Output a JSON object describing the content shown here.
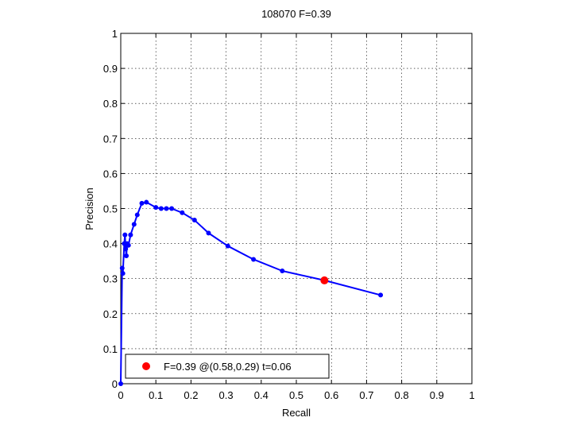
{
  "chart_data": {
    "type": "line",
    "title": "108070 F=0.39",
    "xlabel": "Recall",
    "ylabel": "Precision",
    "xlim": [
      0,
      1
    ],
    "ylim": [
      0,
      1
    ],
    "xticks": [
      0,
      0.1,
      0.2,
      0.3,
      0.4,
      0.5,
      0.6,
      0.7,
      0.8,
      0.9,
      1
    ],
    "yticks": [
      0,
      0.1,
      0.2,
      0.3,
      0.4,
      0.5,
      0.6,
      0.7,
      0.8,
      0.9,
      1
    ],
    "xtick_labels": [
      "0",
      "0.1",
      "0.2",
      "0.3",
      "0.4",
      "0.5",
      "0.6",
      "0.7",
      "0.8",
      "0.9",
      "1"
    ],
    "ytick_labels": [
      "0",
      "0.1",
      "0.2",
      "0.3",
      "0.4",
      "0.5",
      "0.6",
      "0.7",
      "0.8",
      "0.9",
      "1"
    ],
    "grid": true,
    "legend_position": "bottom-left",
    "series": [
      {
        "color": "#0000ff",
        "marker": "dot",
        "x": [
          0.0,
          0.004,
          0.006,
          0.01,
          0.012,
          0.014,
          0.016,
          0.018,
          0.022,
          0.028,
          0.038,
          0.047,
          0.06,
          0.073,
          0.1,
          0.115,
          0.13,
          0.145,
          0.175,
          0.21,
          0.25,
          0.305,
          0.378,
          0.46,
          0.58,
          0.74
        ],
        "y": [
          0.0,
          0.33,
          0.315,
          0.4,
          0.425,
          0.385,
          0.365,
          0.4,
          0.395,
          0.425,
          0.455,
          0.482,
          0.515,
          0.518,
          0.503,
          0.5,
          0.5,
          0.5,
          0.488,
          0.467,
          0.43,
          0.393,
          0.355,
          0.322,
          0.295,
          0.253
        ]
      }
    ],
    "highlight": {
      "x": 0.58,
      "y": 0.295,
      "color": "#ff0000",
      "label": "F=0.39 @(0.58,0.29) t=0.06"
    }
  }
}
